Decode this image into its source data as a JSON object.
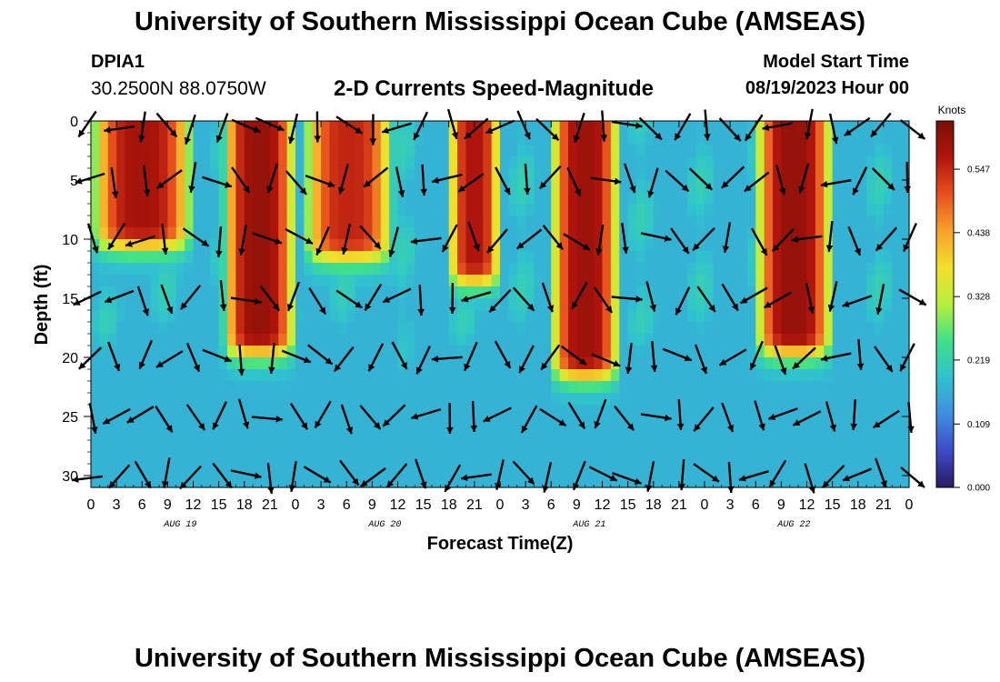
{
  "header": {
    "title": "University of Southern Mississippi Ocean Cube (AMSEAS)",
    "station": "DPIA1",
    "coordinates": "30.2500N  88.0750W",
    "subtitle": "2-D Currents Speed-Magnitude",
    "model_start_label": "Model Start Time",
    "model_start_value": "08/19/2023 Hour 00"
  },
  "footer": {
    "title": "University of Southern Mississippi Ocean Cube (AMSEAS)"
  },
  "chart_data": {
    "type": "heatmap",
    "title": "2-D Currents Speed-Magnitude",
    "xlabel": "Forecast Time(Z)",
    "ylabel": "Depth (ft)",
    "x_range_hours": [
      0,
      96
    ],
    "x_tick_labels": [
      "0",
      "3",
      "6",
      "9",
      "12",
      "15",
      "18",
      "21",
      "0",
      "3",
      "6",
      "9",
      "12",
      "15",
      "18",
      "21",
      "0",
      "3",
      "6",
      "9",
      "12",
      "15",
      "18",
      "21",
      "0",
      "3",
      "6",
      "9",
      "12",
      "15",
      "18",
      "21",
      "0"
    ],
    "date_labels": [
      {
        "label": "AUG 19",
        "hour": 10.5
      },
      {
        "label": "AUG 20",
        "hour": 34.5
      },
      {
        "label": "AUG 21",
        "hour": 58.5
      },
      {
        "label": "AUG 22",
        "hour": 82.5
      }
    ],
    "y_range_ft": [
      0,
      31
    ],
    "y_ticks": [
      0,
      5,
      10,
      15,
      20,
      25,
      30
    ],
    "colorbar": {
      "label": "Knots",
      "min": 0.0,
      "max": 0.63,
      "ticks": [
        "0.000",
        "0.109",
        "0.219",
        "0.328",
        "0.438",
        "0.547"
      ],
      "tick_values": [
        0.0,
        0.109,
        0.219,
        0.328,
        0.438,
        0.547
      ],
      "colors": [
        "#2a1a63",
        "#3c4bc8",
        "#3f8ee0",
        "#30c3cf",
        "#3fe08a",
        "#b6f03b",
        "#f2e02a",
        "#f7a12a",
        "#e8501e",
        "#b0150c",
        "#7a1007"
      ]
    },
    "high_speed_bands": [
      {
        "start_hour": 1,
        "end_hour": 11,
        "max_depth_ft": 9,
        "peak_knots": 0.58
      },
      {
        "start_hour": 16.5,
        "end_hour": 23,
        "max_depth_ft": 18,
        "peak_knots": 0.6
      },
      {
        "start_hour": 26,
        "end_hour": 34.5,
        "max_depth_ft": 10,
        "peak_knots": 0.55
      },
      {
        "start_hour": 43,
        "end_hour": 47,
        "max_depth_ft": 12,
        "peak_knots": 0.57
      },
      {
        "start_hour": 55,
        "end_hour": 61,
        "max_depth_ft": 20,
        "peak_knots": 0.59
      },
      {
        "start_hour": 79,
        "end_hour": 86,
        "max_depth_ft": 18,
        "peak_knots": 0.6
      }
    ],
    "vector_rows_ft": [
      0.5,
      5,
      10,
      15,
      20,
      25,
      30
    ],
    "vector_spacing_hours": 3
  }
}
